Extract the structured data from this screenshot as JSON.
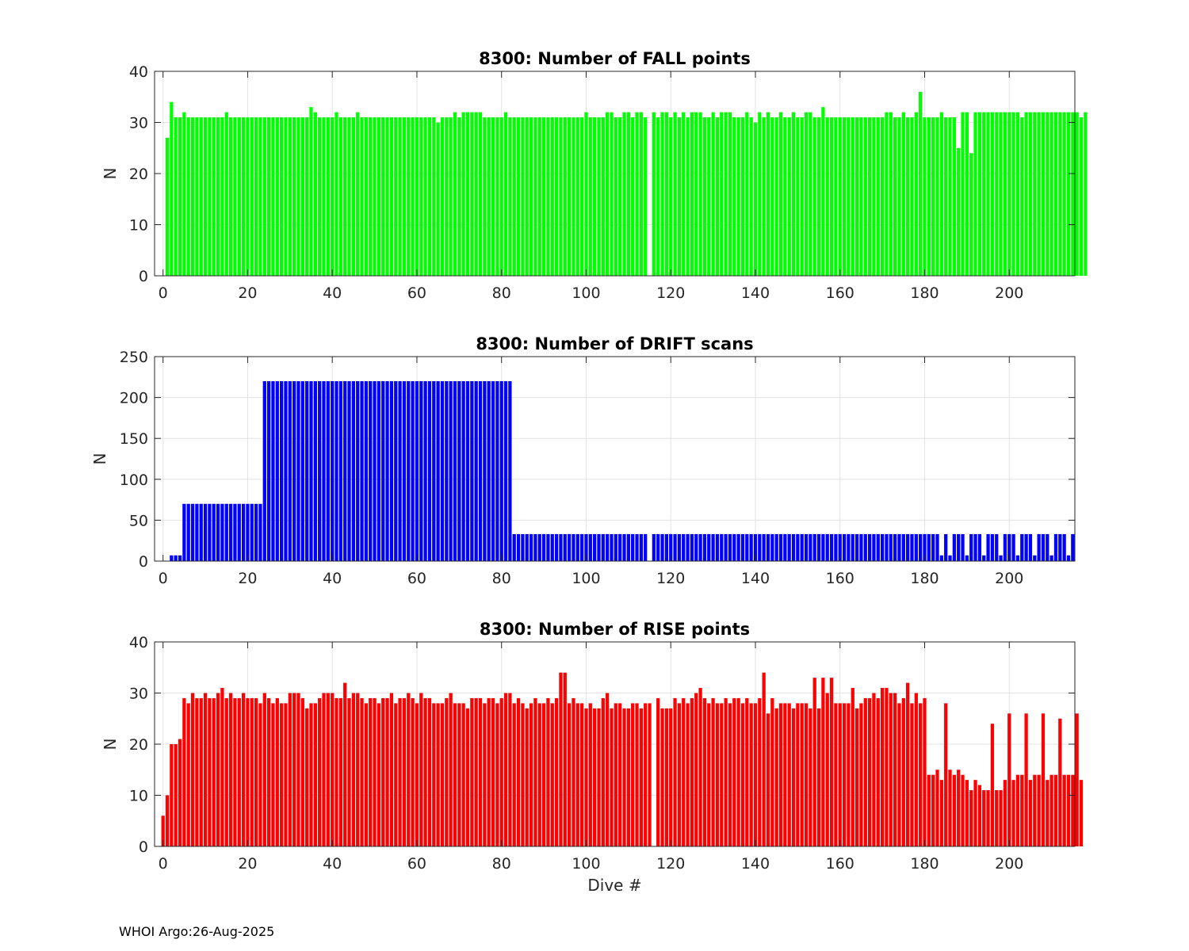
{
  "footer": "WHOI Argo:26-Aug-2025",
  "chart_data": [
    {
      "type": "bar",
      "title": "8300: Number of FALL points",
      "xlabel": "",
      "ylabel": "N",
      "color": "#00ff00",
      "xlim": [
        -2,
        215.5
      ],
      "ylim": [
        0,
        40
      ],
      "yticks": [
        0,
        10,
        20,
        30,
        40
      ],
      "xticks": [
        0,
        20,
        40,
        60,
        80,
        100,
        120,
        140,
        160,
        180,
        200
      ],
      "grid": true,
      "x_start": 1,
      "values": [
        27,
        34,
        31,
        31,
        32,
        31,
        31,
        31,
        31,
        31,
        31,
        31,
        31,
        31,
        32,
        31,
        31,
        31,
        31,
        31,
        31,
        31,
        31,
        31,
        31,
        31,
        31,
        31,
        31,
        31,
        31,
        31,
        31,
        31,
        33,
        32,
        31,
        31,
        31,
        31,
        32,
        31,
        31,
        31,
        31,
        32,
        31,
        31,
        31,
        31,
        31,
        31,
        31,
        31,
        31,
        31,
        31,
        31,
        31,
        31,
        31,
        31,
        31,
        31,
        30,
        31,
        31,
        31,
        32,
        31,
        32,
        32,
        32,
        32,
        32,
        31,
        31,
        31,
        31,
        31,
        32,
        31,
        31,
        31,
        31,
        31,
        31,
        31,
        31,
        31,
        31,
        31,
        31,
        31,
        31,
        31,
        31,
        31,
        31,
        32,
        31,
        31,
        31,
        31,
        32,
        32,
        31,
        31,
        32,
        32,
        31,
        32,
        32,
        31,
        0,
        32,
        31,
        32,
        32,
        31,
        32,
        31,
        32,
        31,
        32,
        32,
        32,
        31,
        31,
        32,
        31,
        32,
        32,
        32,
        31,
        31,
        31,
        32,
        31,
        30,
        32,
        31,
        32,
        31,
        31,
        32,
        31,
        31,
        32,
        31,
        31,
        32,
        32,
        31,
        31,
        33,
        31,
        31,
        31,
        31,
        31,
        31,
        31,
        31,
        31,
        31,
        31,
        31,
        31,
        31,
        32,
        32,
        31,
        31,
        32,
        31,
        31,
        32,
        36,
        31,
        31,
        31,
        31,
        32,
        31,
        31,
        31,
        25,
        32,
        32,
        24,
        32,
        32,
        32,
        32,
        32,
        32,
        32,
        32,
        32,
        32,
        32,
        31,
        32,
        32,
        32,
        32,
        32,
        32,
        32,
        32,
        32,
        32,
        32,
        32,
        32,
        31,
        32
      ]
    },
    {
      "type": "bar",
      "title": "8300: Number of DRIFT scans",
      "xlabel": "",
      "ylabel": "N",
      "color": "#0000ff",
      "xlim": [
        -2,
        215.5
      ],
      "ylim": [
        0,
        250
      ],
      "yticks": [
        0,
        50,
        100,
        150,
        200,
        250
      ],
      "xticks": [
        0,
        20,
        40,
        60,
        80,
        100,
        120,
        140,
        160,
        180,
        200
      ],
      "grid": true,
      "x_start": 1,
      "values": [
        0,
        7,
        7,
        7,
        70,
        70,
        70,
        70,
        70,
        70,
        70,
        70,
        70,
        70,
        70,
        70,
        70,
        70,
        70,
        70,
        70,
        70,
        70,
        220,
        220,
        220,
        220,
        220,
        220,
        220,
        220,
        220,
        220,
        220,
        220,
        220,
        220,
        220,
        220,
        220,
        220,
        220,
        220,
        220,
        220,
        220,
        220,
        220,
        220,
        220,
        220,
        220,
        220,
        220,
        220,
        220,
        220,
        220,
        220,
        220,
        220,
        220,
        220,
        220,
        220,
        220,
        220,
        220,
        220,
        220,
        220,
        220,
        220,
        220,
        220,
        220,
        220,
        220,
        220,
        220,
        220,
        220,
        33,
        33,
        33,
        33,
        33,
        33,
        33,
        33,
        33,
        33,
        33,
        33,
        33,
        33,
        33,
        33,
        33,
        33,
        33,
        33,
        33,
        33,
        33,
        33,
        33,
        33,
        33,
        33,
        33,
        33,
        33,
        33,
        0,
        33,
        33,
        33,
        33,
        33,
        33,
        33,
        33,
        33,
        33,
        33,
        33,
        33,
        33,
        33,
        33,
        33,
        33,
        33,
        33,
        33,
        33,
        33,
        33,
        33,
        33,
        33,
        33,
        33,
        33,
        33,
        33,
        33,
        33,
        33,
        33,
        33,
        33,
        33,
        33,
        33,
        33,
        33,
        33,
        33,
        33,
        33,
        33,
        33,
        33,
        33,
        33,
        33,
        33,
        33,
        33,
        33,
        33,
        33,
        33,
        33,
        33,
        33,
        33,
        33,
        33,
        33,
        33,
        7,
        33,
        7,
        33,
        33,
        33,
        7,
        33,
        33,
        33,
        7,
        33,
        33,
        33,
        7,
        33,
        33,
        33,
        7,
        33,
        33,
        33,
        7,
        33,
        33,
        33,
        7,
        33,
        33,
        33,
        7,
        33
      ]
    },
    {
      "type": "bar",
      "title": "8300: Number of RISE points",
      "xlabel": "Dive #",
      "ylabel": "N",
      "color": "#ff0000",
      "xlim": [
        -2,
        215.5
      ],
      "ylim": [
        0,
        40
      ],
      "yticks": [
        0,
        10,
        20,
        30,
        40
      ],
      "xticks": [
        0,
        20,
        40,
        60,
        80,
        100,
        120,
        140,
        160,
        180,
        200
      ],
      "grid": true,
      "x_start": 0,
      "values": [
        6,
        10,
        20,
        20,
        21,
        29,
        28,
        30,
        29,
        29,
        30,
        29,
        29,
        30,
        31,
        29,
        30,
        29,
        29,
        30,
        29,
        29,
        29,
        28,
        30,
        29,
        28,
        29,
        28,
        28,
        30,
        30,
        30,
        29,
        27,
        28,
        28,
        29,
        30,
        30,
        30,
        29,
        29,
        32,
        29,
        30,
        30,
        29,
        28,
        29,
        29,
        28,
        29,
        29,
        30,
        28,
        29,
        29,
        30,
        29,
        28,
        30,
        29,
        29,
        28,
        28,
        28,
        29,
        30,
        28,
        28,
        28,
        27,
        29,
        29,
        29,
        28,
        29,
        29,
        28,
        29,
        30,
        30,
        28,
        29,
        28,
        27,
        28,
        29,
        28,
        28,
        29,
        28,
        29,
        34,
        34,
        28,
        29,
        28,
        28,
        27,
        28,
        27,
        27,
        29,
        30,
        27,
        28,
        28,
        27,
        27,
        28,
        28,
        27,
        28,
        28,
        0,
        29,
        27,
        27,
        27,
        29,
        28,
        29,
        28,
        29,
        30,
        31,
        29,
        28,
        29,
        28,
        28,
        29,
        28,
        29,
        29,
        28,
        29,
        28,
        28,
        29,
        34,
        26,
        29,
        27,
        28,
        28,
        28,
        27,
        28,
        28,
        28,
        27,
        33,
        27,
        33,
        30,
        33,
        28,
        28,
        28,
        28,
        31,
        27,
        28,
        29,
        29,
        30,
        29,
        31,
        31,
        30,
        30,
        28,
        29,
        32,
        28,
        30,
        28,
        29,
        14,
        14,
        15,
        13,
        28,
        15,
        14,
        15,
        14,
        13,
        11,
        13,
        12,
        11,
        11,
        24,
        11,
        11,
        13,
        26,
        13,
        14,
        14,
        26,
        13,
        14,
        14,
        26,
        13,
        14,
        14,
        25,
        14,
        14,
        14,
        26,
        13
      ]
    }
  ]
}
